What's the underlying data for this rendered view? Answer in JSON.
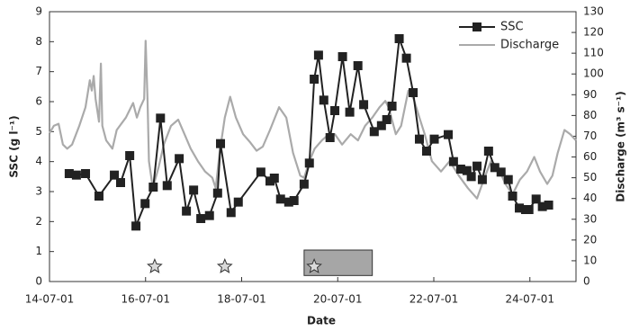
{
  "chart_data": {
    "type": "line",
    "x_label": "Date",
    "y_label": "SSC (g l⁻¹)",
    "y2_label": "Discharge (m³ s⁻¹)",
    "xlim": [
      14,
      24.96
    ],
    "xticks": [
      {
        "value": 14,
        "label": "14-07-01"
      },
      {
        "value": 16,
        "label": "16-07-01"
      },
      {
        "value": 18,
        "label": "18-07-01"
      },
      {
        "value": 20,
        "label": "20-07-01"
      },
      {
        "value": 22,
        "label": "22-07-01"
      },
      {
        "value": 24,
        "label": "24-07-01"
      }
    ],
    "ylim": [
      0,
      9
    ],
    "yticks": [
      0,
      1,
      2,
      3,
      4,
      5,
      6,
      7,
      8,
      9
    ],
    "y2lim": [
      0,
      130
    ],
    "y2ticks": [
      0,
      10,
      20,
      30,
      40,
      50,
      60,
      70,
      80,
      90,
      100,
      110,
      120,
      130
    ],
    "legend": "top-right",
    "series": [
      {
        "name": "SSC",
        "color": "#222222",
        "markers": true,
        "x": [
          14.41,
          14.56,
          14.75,
          15.03,
          15.35,
          15.48,
          15.67,
          15.8,
          15.99,
          16.16,
          16.31,
          16.45,
          16.7,
          16.85,
          17.0,
          17.15,
          17.33,
          17.5,
          17.56,
          17.78,
          17.93,
          18.4,
          18.59,
          18.68,
          18.81,
          18.98,
          19.09,
          19.3,
          19.41,
          19.51,
          19.6,
          19.71,
          19.84,
          19.94,
          20.1,
          20.25,
          20.42,
          20.54,
          20.76,
          20.91,
          21.02,
          21.13,
          21.28,
          21.43,
          21.57,
          21.7,
          21.85,
          22.01,
          22.3,
          22.41,
          22.56,
          22.69,
          22.78,
          22.9,
          23.01,
          23.14,
          23.27,
          23.4,
          23.55,
          23.64,
          23.78,
          23.91,
          23.98,
          24.13,
          24.26,
          24.39
        ],
        "values": [
          3.6,
          3.55,
          3.6,
          2.85,
          3.55,
          3.3,
          4.2,
          1.85,
          2.6,
          3.15,
          5.45,
          3.2,
          4.1,
          2.35,
          3.05,
          2.1,
          2.2,
          2.95,
          4.6,
          2.3,
          2.65,
          3.65,
          3.35,
          3.45,
          2.75,
          2.65,
          2.7,
          3.25,
          3.95,
          6.75,
          7.55,
          6.05,
          4.8,
          5.7,
          7.5,
          5.65,
          7.2,
          5.9,
          5.0,
          5.2,
          5.4,
          5.85,
          8.1,
          7.45,
          6.3,
          4.75,
          4.35,
          4.75,
          4.9,
          4.0,
          3.75,
          3.7,
          3.5,
          3.85,
          3.4,
          4.35,
          3.8,
          3.65,
          3.4,
          2.85,
          2.45,
          2.4,
          2.4,
          2.75,
          2.5,
          2.55
        ]
      },
      {
        "name": "Discharge",
        "color": "#aaaaaa",
        "axis": "y2",
        "markers": false,
        "x": [
          14.0,
          14.09,
          14.19,
          14.28,
          14.37,
          14.47,
          14.62,
          14.75,
          14.84,
          14.88,
          14.92,
          14.96,
          15.03,
          15.07,
          15.1,
          15.18,
          15.31,
          15.4,
          15.59,
          15.74,
          15.82,
          15.89,
          15.97,
          16.0,
          16.04,
          16.07,
          16.15,
          16.27,
          16.38,
          16.53,
          16.68,
          16.81,
          16.94,
          17.09,
          17.24,
          17.39,
          17.46,
          17.54,
          17.65,
          17.76,
          17.88,
          18.03,
          18.18,
          18.31,
          18.44,
          18.59,
          18.78,
          18.93,
          19.07,
          19.22,
          19.3,
          19.41,
          19.52,
          19.67,
          19.82,
          19.94,
          20.09,
          20.27,
          20.42,
          20.57,
          20.72,
          20.87,
          20.99,
          21.06,
          21.21,
          21.32,
          21.47,
          21.58,
          21.7,
          21.81,
          21.96,
          22.15,
          22.33,
          22.52,
          22.71,
          22.9,
          23.04,
          23.19,
          23.34,
          23.49,
          23.64,
          23.79,
          23.94,
          24.09,
          24.21,
          24.36,
          24.47,
          24.58,
          24.72,
          24.84,
          24.96
        ],
        "values": [
          71.5,
          75,
          76,
          66,
          64,
          66,
          75,
          84,
          97,
          92,
          99,
          88,
          77,
          105,
          75,
          68,
          64,
          73,
          79,
          86,
          79,
          84,
          88,
          116,
          88,
          58,
          45,
          55,
          66,
          75,
          78,
          71,
          64,
          58,
          53,
          50,
          45,
          62,
          79,
          89,
          79,
          71,
          67,
          63,
          65,
          73,
          84,
          79,
          62,
          51,
          50,
          58,
          64,
          68,
          71,
          71,
          66,
          71,
          68,
          75,
          79,
          84,
          87,
          84,
          71,
          75,
          92,
          88,
          79,
          71,
          58,
          53,
          58,
          51,
          45,
          40,
          49,
          58,
          55,
          47,
          42,
          49,
          53,
          60,
          53,
          47,
          51,
          62,
          73,
          71,
          68
        ]
      }
    ],
    "events": {
      "x": [
        16.19,
        17.65,
        19.51
      ],
      "y": 0.5
    },
    "shaded_period": {
      "x": [
        19.3,
        20.72
      ],
      "y": [
        0.2,
        1.05
      ]
    }
  }
}
